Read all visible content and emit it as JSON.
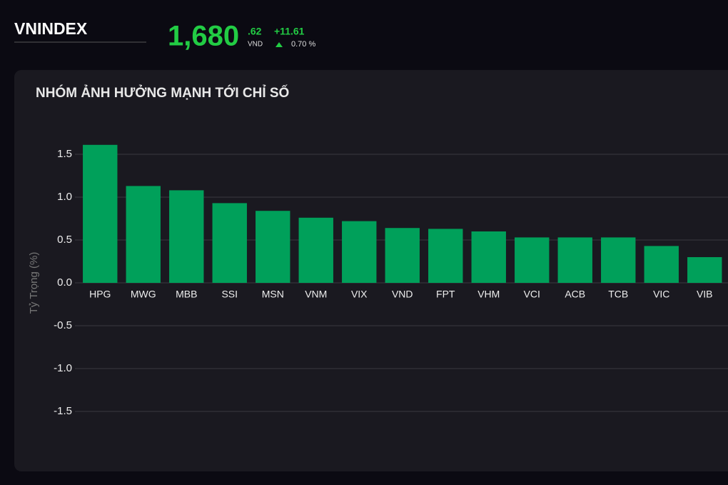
{
  "header": {
    "index": "VNINDEX",
    "price_main": "1,680",
    "price_decimal": ".62",
    "currency": "VND",
    "change": "+11.61",
    "change_percent": "0.70 %"
  },
  "chart_data": {
    "type": "bar",
    "title": "NHÓM ẢNH HƯỞNG MẠNH TỚI CHỈ SỐ",
    "y_label": "Tỷ Trọng (%)",
    "categories": [
      "HPG",
      "MWG",
      "MBB",
      "SSI",
      "MSN",
      "VNM",
      "VIX",
      "VND",
      "FPT",
      "VHM",
      "VCI",
      "ACB",
      "TCB",
      "VIC",
      "VIB"
    ],
    "values": [
      1.61,
      1.13,
      1.08,
      0.93,
      0.84,
      0.76,
      0.72,
      0.64,
      0.63,
      0.6,
      0.53,
      0.53,
      0.53,
      0.43,
      0.3
    ],
    "color": "#00a05a",
    "ylim": [
      -1.8,
      1.8
    ],
    "yticks": [
      1.5,
      {
        "value": 1,
        "label": "1.0"
      },
      0.5,
      {
        "value": 0,
        "label": "0.0"
      },
      -0.5,
      {
        "value": -1,
        "label": "-1.0"
      },
      -1.5
    ],
    "grid": true
  }
}
